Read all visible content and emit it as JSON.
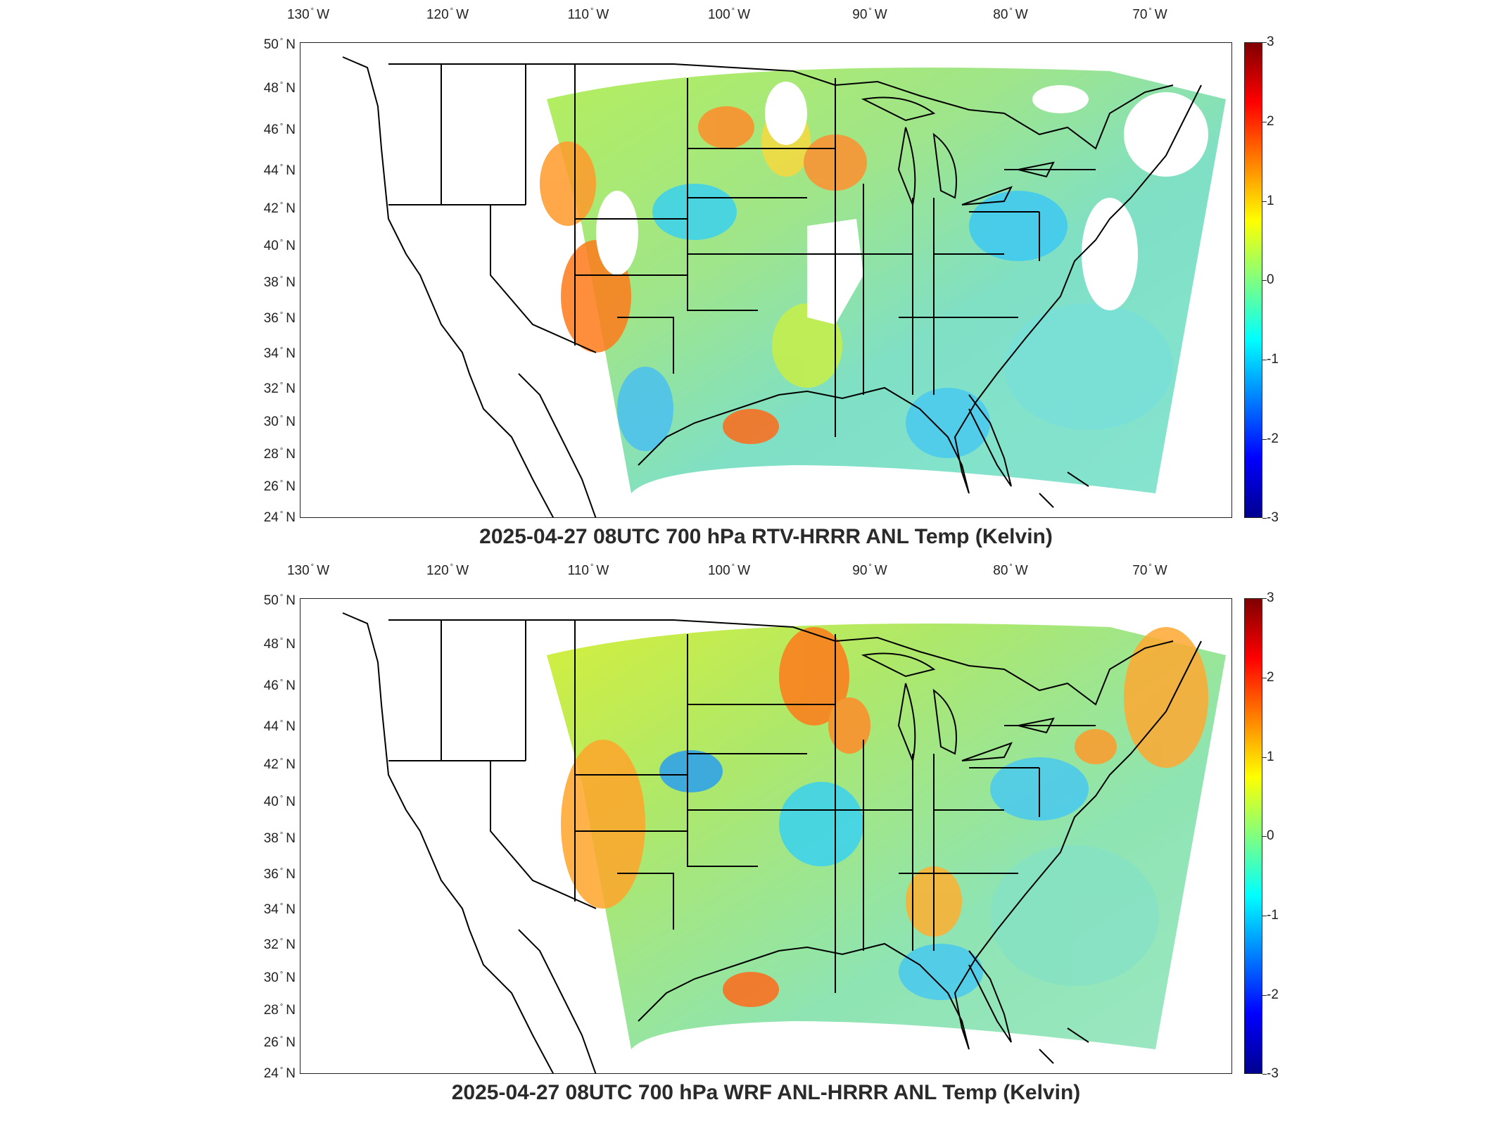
{
  "panels": [
    {
      "id": "rtv",
      "title": "2025-04-27 08UTC 700 hPa RTV-HRRR ANL Temp (Kelvin)",
      "lon_ticks": [
        "130",
        "120",
        "110",
        "100",
        "90",
        "80",
        "70"
      ],
      "lon_suffix": "W",
      "lat_ticks": [
        "50",
        "48",
        "46",
        "44",
        "42",
        "40",
        "38",
        "36",
        "34",
        "32",
        "30",
        "28",
        "26",
        "24"
      ],
      "lat_suffix": "N",
      "colorbar_ticks": [
        "3",
        "2",
        "1",
        "0",
        "-1",
        "-2",
        "-3"
      ]
    },
    {
      "id": "wrf",
      "title": "2025-04-27 08UTC 700 hPa WRF ANL-HRRR ANL Temp (Kelvin)",
      "lon_ticks": [
        "130",
        "120",
        "110",
        "100",
        "90",
        "80",
        "70"
      ],
      "lon_suffix": "W",
      "lat_ticks": [
        "50",
        "48",
        "46",
        "44",
        "42",
        "40",
        "38",
        "36",
        "34",
        "32",
        "30",
        "28",
        "26",
        "24"
      ],
      "lat_suffix": "N",
      "colorbar_ticks": [
        "3",
        "2",
        "1",
        "0",
        "-1",
        "-2",
        "-3"
      ]
    }
  ],
  "colorbar": {
    "min": -3,
    "max": 3,
    "colormap": [
      "#00008f",
      "#0000ff",
      "#0080ff",
      "#00ffff",
      "#80ff80",
      "#ffff00",
      "#ff8000",
      "#ff0000",
      "#800000"
    ]
  },
  "colors": {
    "field_base": "#a6e86a",
    "outline": "#000000"
  }
}
